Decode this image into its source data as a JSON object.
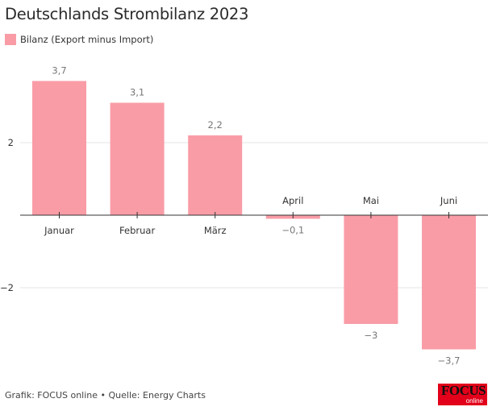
{
  "chart_data": {
    "type": "bar",
    "title": "Deutschlands Strombilanz 2023",
    "categories": [
      "Januar",
      "Februar",
      "März",
      "April",
      "Mai",
      "Juni"
    ],
    "series": [
      {
        "name": "Bilanz (Export minus Import)",
        "values": [
          3.7,
          3.1,
          2.2,
          -0.1,
          -3,
          -3.7
        ],
        "labels": [
          "3,7",
          "3,1",
          "2,2",
          "−0,1",
          "−3",
          "−3,7"
        ]
      }
    ],
    "yticks": [
      {
        "value": -2,
        "label": "−2"
      },
      {
        "value": 2,
        "label": "2"
      }
    ],
    "ylim": [
      -3.9,
      4.2
    ],
    "grid": true,
    "legend": "top-left",
    "color": "#f99ca6"
  },
  "footer": "Grafik: FOCUS online • Quelle: Energy Charts",
  "logo": {
    "text": "FOCUS",
    "sub": "online"
  }
}
